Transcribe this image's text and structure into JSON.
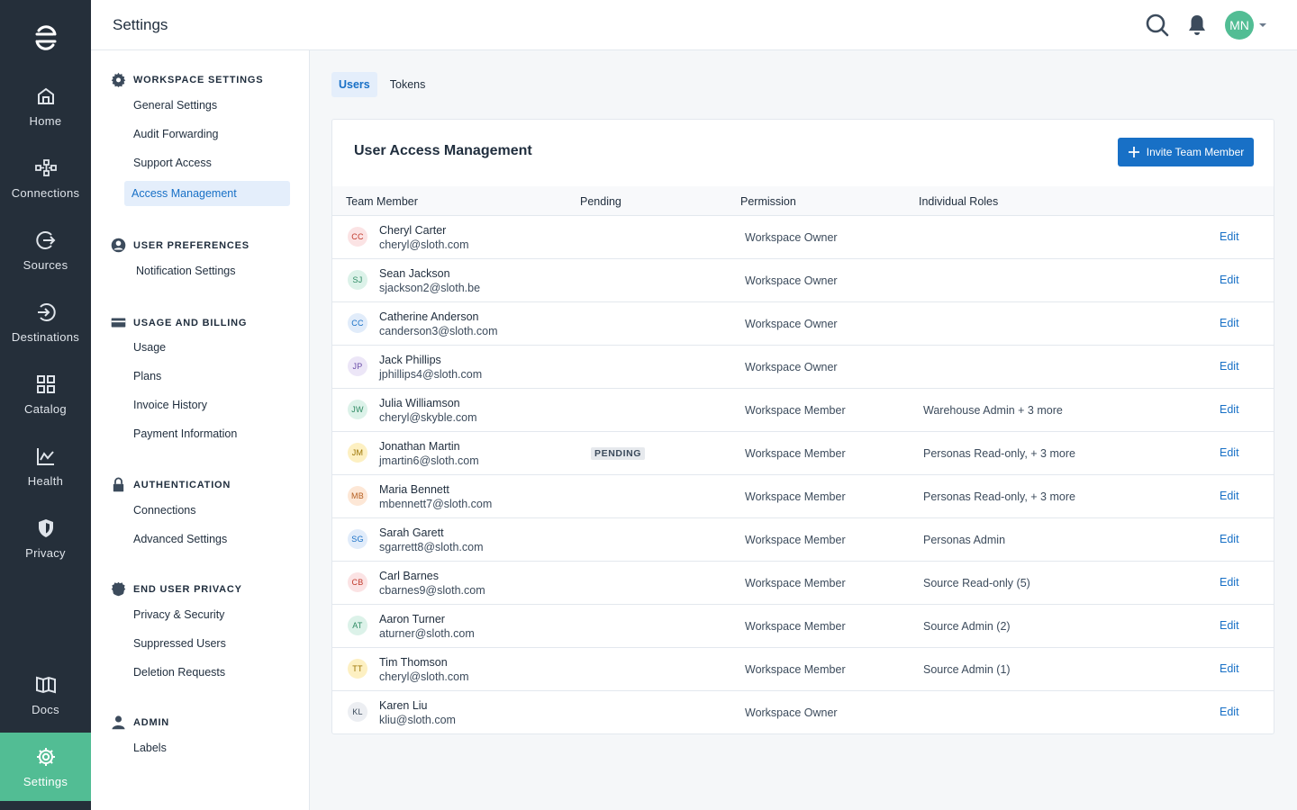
{
  "rail": {
    "items": [
      {
        "label": "Home",
        "icon": "home-icon"
      },
      {
        "label": "Connections",
        "icon": "connections-icon"
      },
      {
        "label": "Sources",
        "icon": "sources-icon"
      },
      {
        "label": "Destinations",
        "icon": "destinations-icon"
      },
      {
        "label": "Catalog",
        "icon": "catalog-icon"
      },
      {
        "label": "Health",
        "icon": "health-icon"
      },
      {
        "label": "Privacy",
        "icon": "privacy-icon"
      },
      {
        "label": "Docs",
        "icon": "docs-icon"
      },
      {
        "label": "Settings",
        "icon": "gear-icon",
        "active": true
      }
    ]
  },
  "header": {
    "title": "Settings",
    "avatar_initials": "MN"
  },
  "subnav": {
    "sections": [
      {
        "title": "WORKSPACE SETTINGS",
        "icon": "gear-icon",
        "links": [
          "General Settings",
          "Audit Forwarding",
          "Support Access",
          "Access Management"
        ]
      },
      {
        "title": "USER PREFERENCES",
        "icon": "user-circle-icon",
        "links": [
          "Notification Settings"
        ]
      },
      {
        "title": "USAGE AND BILLING",
        "icon": "credit-card-icon",
        "links": [
          "Usage",
          "Plans",
          "Invoice History",
          "Payment Information"
        ]
      },
      {
        "title": "AUTHENTICATION",
        "icon": "lock-icon",
        "links": [
          "Connections",
          "Advanced Settings"
        ]
      },
      {
        "title": "END USER PRIVACY",
        "icon": "shield-icon",
        "links": [
          "Privacy & Security",
          "Suppressed Users",
          "Deletion Requests"
        ]
      },
      {
        "title": "ADMIN",
        "icon": "user-icon",
        "links": [
          "Labels"
        ]
      }
    ],
    "active_link": "Access Management"
  },
  "tabs": [
    {
      "label": "Users",
      "active": true
    },
    {
      "label": "Tokens",
      "active": false
    }
  ],
  "card": {
    "title": "User Access Management",
    "invite_label": "Invite Team Member"
  },
  "table": {
    "columns": [
      "Team Member",
      "Pending",
      "Permission",
      "Individual Roles"
    ],
    "edit_label": "Edit",
    "pending_label": "PENDING",
    "rows": [
      {
        "initials": "CC",
        "name": "Cheryl Carter",
        "email": "cheryl@sloth.com",
        "pending": false,
        "permission": "Workspace Owner",
        "roles": "",
        "color": "#fbe3e4",
        "text": "#c0392b"
      },
      {
        "initials": "SJ",
        "name": "Sean Jackson",
        "email": "sjackson2@sloth.be",
        "pending": false,
        "permission": "Workspace Owner",
        "roles": "",
        "color": "#dcf2e9",
        "text": "#2e8a63"
      },
      {
        "initials": "CC",
        "name": "Catherine Anderson",
        "email": "canderson3@sloth.com",
        "pending": false,
        "permission": "Workspace Owner",
        "roles": "",
        "color": "#e1ecfa",
        "text": "#1870c6"
      },
      {
        "initials": "JP",
        "name": "Jack Phillips",
        "email": "jphillips4@sloth.com",
        "pending": false,
        "permission": "Workspace Owner",
        "roles": "",
        "color": "#ece6f7",
        "text": "#6a4ca8"
      },
      {
        "initials": "JW",
        "name": "Julia Williamson",
        "email": "cheryl@skyble.com",
        "pending": false,
        "permission": "Workspace Member",
        "roles": "Warehouse Admin + 3 more",
        "color": "#dcf2e9",
        "text": "#2e8a63"
      },
      {
        "initials": "JM",
        "name": "Jonathan Martin",
        "email": "jmartin6@sloth.com",
        "pending": true,
        "permission": "Workspace Member",
        "roles": "Personas Read-only, + 3 more",
        "color": "#fdf0c2",
        "text": "#9a7200"
      },
      {
        "initials": "MB",
        "name": "Maria Bennett",
        "email": "mbennett7@sloth.com",
        "pending": false,
        "permission": "Workspace Member",
        "roles": "Personas Read-only, + 3 more",
        "color": "#fde7d6",
        "text": "#b35c1e"
      },
      {
        "initials": "SG",
        "name": "Sarah Garett",
        "email": "sgarrett8@sloth.com",
        "pending": false,
        "permission": "Workspace Member",
        "roles": "Personas Admin",
        "color": "#e1ecfa",
        "text": "#1870c6"
      },
      {
        "initials": "CB",
        "name": "Carl Barnes",
        "email": "cbarnes9@sloth.com",
        "pending": false,
        "permission": "Workspace Member",
        "roles": "Source Read-only (5)",
        "color": "#fbe3e4",
        "text": "#c0392b"
      },
      {
        "initials": "AT",
        "name": "Aaron Turner",
        "email": "aturner@sloth.com",
        "pending": false,
        "permission": "Workspace Member",
        "roles": "Source Admin (2)",
        "color": "#dcf2e9",
        "text": "#2e8a63"
      },
      {
        "initials": "TT",
        "name": "Tim Thomson",
        "email": "cheryl@sloth.com",
        "pending": false,
        "permission": "Workspace Member",
        "roles": "Source Admin (1)",
        "color": "#fdf0c2",
        "text": "#9a7200"
      },
      {
        "initials": "KL",
        "name": "Karen Liu",
        "email": "kliu@sloth.com",
        "pending": false,
        "permission": "Workspace Owner",
        "roles": "",
        "color": "#eceef2",
        "text": "#3c4b5c"
      }
    ]
  },
  "colors": {
    "rail_bg": "#252f3a",
    "accent_green": "#52bd94",
    "accent_blue": "#1870c6"
  }
}
